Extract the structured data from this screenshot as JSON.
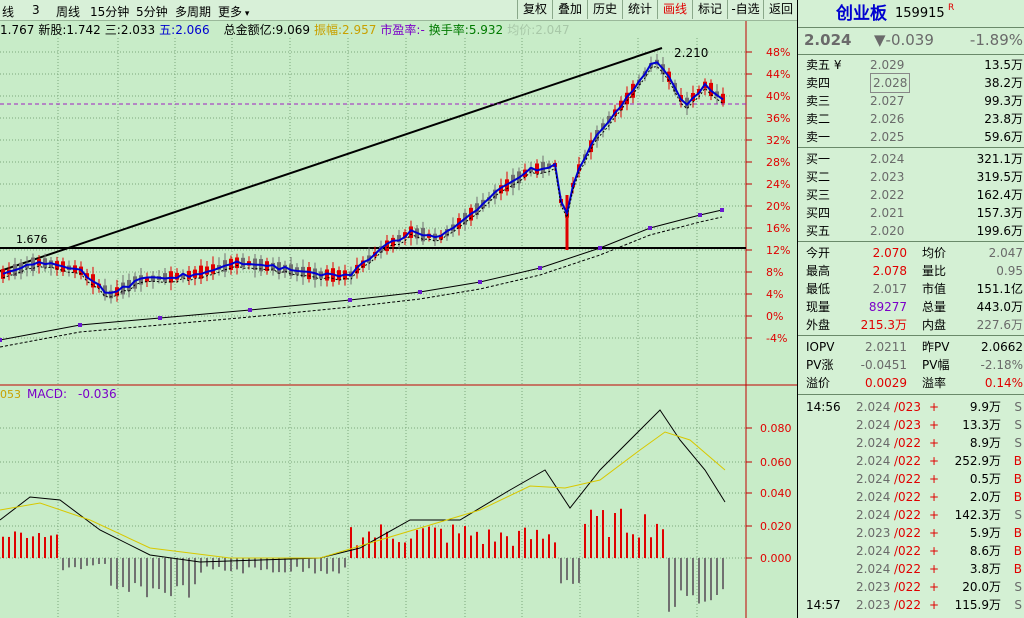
{
  "toolbar": {
    "left": [
      "线",
      "3",
      "周线",
      "15分钟",
      "5分钟",
      "多周期",
      "更多"
    ],
    "right": [
      "复权",
      "叠加",
      "历史",
      "统计",
      "画线",
      "标记",
      "-自选",
      "返回"
    ],
    "active": "画线"
  },
  "infoline": {
    "ma_a": "1.767",
    "new_label": "新股:",
    "new_val": "1.742",
    "san_label": "三:",
    "san_val": "2.033",
    "wu_label": "五:",
    "wu_val": "2.066",
    "amount_label": "总金额亿:",
    "amount_val": "9.069",
    "amp_label": "振幅:",
    "amp_val": "2.957",
    "pe_label": "市盈率:",
    "pe_val": "-",
    "turnover_label": "换手率:",
    "turnover_val": "5.932",
    "avg_label": "均价:",
    "avg_val": "2.047"
  },
  "chart_data": {
    "type": "line",
    "price_axis_labels": [
      "48%",
      "44%",
      "40%",
      "36%",
      "32%",
      "28%",
      "24%",
      "20%",
      "16%",
      "12%",
      "8%",
      "4%",
      "0%",
      "-4%"
    ],
    "annotations": [
      "2.210",
      "1.676"
    ],
    "macd_label": "MACD:",
    "macd_value": "-0.036",
    "macd_prefix": "053",
    "macd_axis_labels": [
      "0.080",
      "0.060",
      "0.040",
      "0.020",
      "0.000"
    ]
  },
  "panel": {
    "name": "创业板",
    "code": "159915",
    "flag": "R",
    "price": "2.024",
    "change": "▼-0.039",
    "pct": "-1.89%",
    "asks": [
      {
        "label": "卖五 ¥",
        "price": "2.029",
        "vol": "13.5万"
      },
      {
        "label": "卖四",
        "price": "2.028",
        "vol": "38.2万"
      },
      {
        "label": "卖三",
        "price": "2.027",
        "vol": "99.3万"
      },
      {
        "label": "卖二",
        "price": "2.026",
        "vol": "23.8万"
      },
      {
        "label": "卖一",
        "price": "2.025",
        "vol": "59.6万"
      }
    ],
    "bids": [
      {
        "label": "买一",
        "price": "2.024",
        "vol": "321.1万"
      },
      {
        "label": "买二",
        "price": "2.023",
        "vol": "319.5万"
      },
      {
        "label": "买三",
        "price": "2.022",
        "vol": "162.4万"
      },
      {
        "label": "买四",
        "price": "2.021",
        "vol": "157.3万"
      },
      {
        "label": "买五",
        "price": "2.020",
        "vol": "199.6万"
      }
    ],
    "stats": [
      {
        "l1": "今开",
        "v1": "2.070",
        "l2": "均价",
        "v2": "2.047",
        "c1": "red",
        "c2": "gray"
      },
      {
        "l1": "最高",
        "v1": "2.078",
        "l2": "量比",
        "v2": "0.95",
        "c1": "red",
        "c2": "gray"
      },
      {
        "l1": "最低",
        "v1": "2.017",
        "l2": "市值",
        "v2": "151.1亿",
        "c1": "gray",
        "c2": "plain"
      },
      {
        "l1": "现量",
        "v1": "89277",
        "l2": "总量",
        "v2": "443.0万",
        "c1": "purple",
        "c2": "plain"
      },
      {
        "l1": "外盘",
        "v1": "215.3万",
        "l2": "内盘",
        "v2": "227.6万",
        "c1": "red",
        "c2": "gray"
      }
    ],
    "iopv": [
      {
        "l1": "IOPV",
        "v1": "2.0211",
        "l2": "昨PV",
        "v2": "2.0662",
        "c1": "gray",
        "c2": "plain"
      },
      {
        "l1": "PV涨",
        "v1": "-0.0451",
        "l2": "PV幅",
        "v2": "-2.18%",
        "c1": "gray",
        "c2": "gray"
      },
      {
        "l1": "溢价",
        "v1": "0.0029",
        "l2": "溢率",
        "v2": "0.14%",
        "c1": "red",
        "c2": "red"
      }
    ],
    "ticks": [
      {
        "time": "14:56",
        "price": "2.024",
        "ask": "/023",
        "sign": "+",
        "vol": "9.9万",
        "side": "S"
      },
      {
        "time": "",
        "price": "2.024",
        "ask": "/023",
        "sign": "+",
        "vol": "13.3万",
        "side": "S"
      },
      {
        "time": "",
        "price": "2.024",
        "ask": "/022",
        "sign": "+",
        "vol": "8.9万",
        "side": "S"
      },
      {
        "time": "",
        "price": "2.024",
        "ask": "/022",
        "sign": "+",
        "vol": "252.9万",
        "side": "B"
      },
      {
        "time": "",
        "price": "2.024",
        "ask": "/022",
        "sign": "+",
        "vol": "0.5万",
        "side": "B"
      },
      {
        "time": "",
        "price": "2.024",
        "ask": "/022",
        "sign": "+",
        "vol": "2.0万",
        "side": "B"
      },
      {
        "time": "",
        "price": "2.024",
        "ask": "/022",
        "sign": "+",
        "vol": "142.3万",
        "side": "S"
      },
      {
        "time": "",
        "price": "2.023",
        "ask": "/022",
        "sign": "+",
        "vol": "5.9万",
        "side": "B"
      },
      {
        "time": "",
        "price": "2.024",
        "ask": "/022",
        "sign": "+",
        "vol": "8.6万",
        "side": "B"
      },
      {
        "time": "",
        "price": "2.024",
        "ask": "/022",
        "sign": "+",
        "vol": "3.8万",
        "side": "B"
      },
      {
        "time": "",
        "price": "2.023",
        "ask": "/022",
        "sign": "+",
        "vol": "20.0万",
        "side": "S"
      },
      {
        "time": "14:57",
        "price": "2.023",
        "ask": "/022",
        "sign": "+",
        "vol": "115.9万",
        "side": "S"
      }
    ]
  }
}
